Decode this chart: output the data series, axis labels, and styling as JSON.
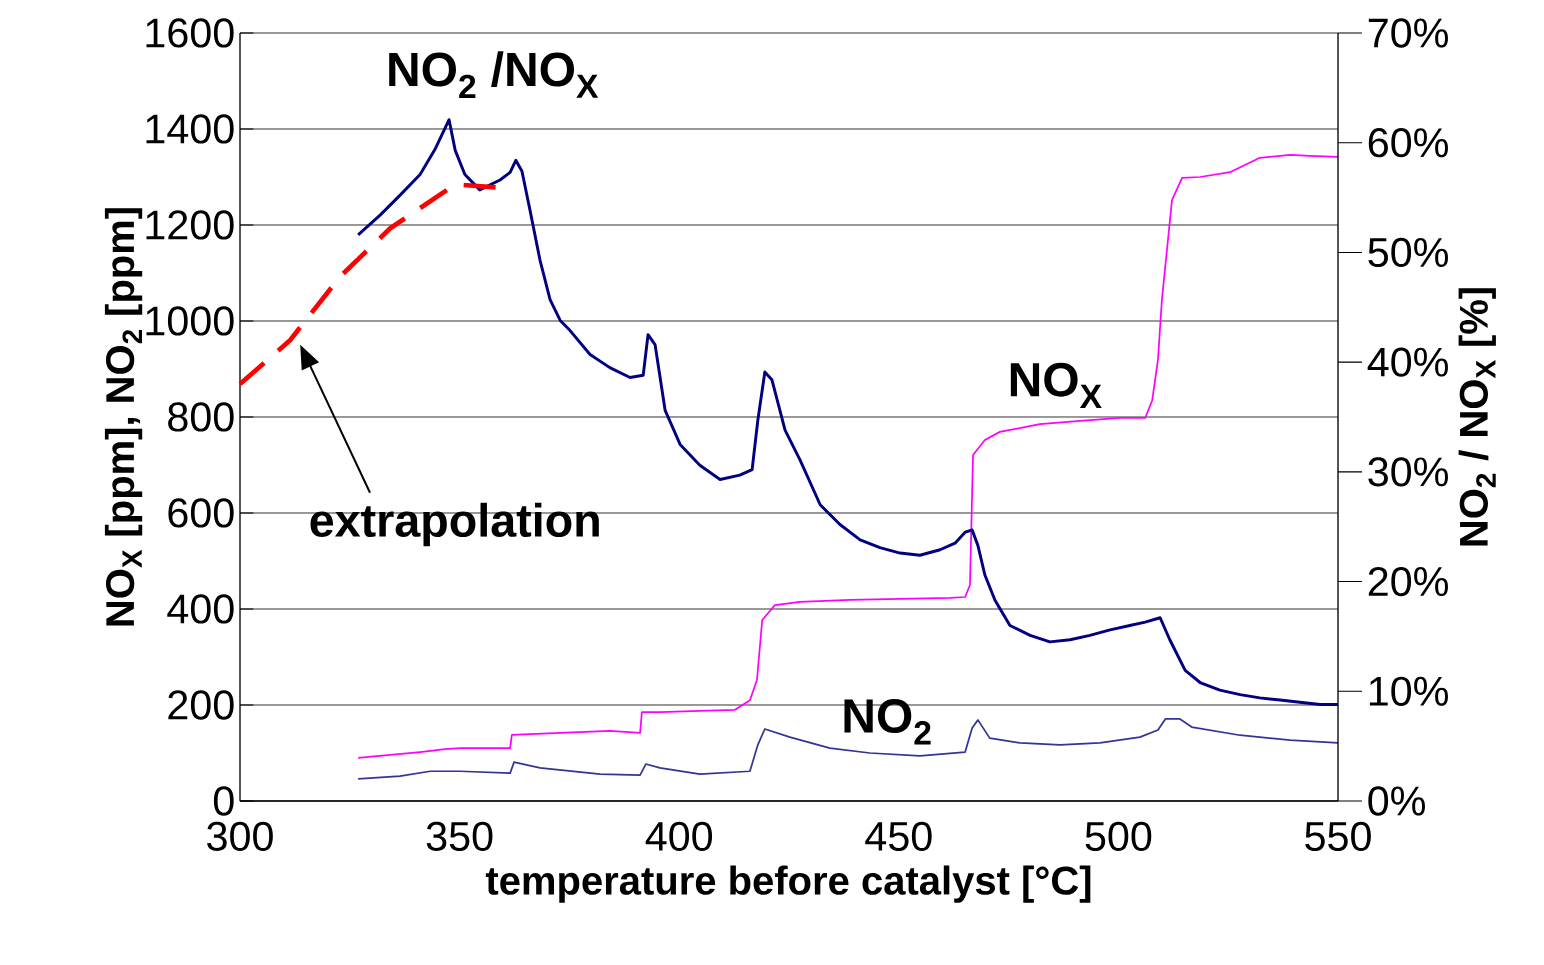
{
  "chart_data": {
    "type": "line",
    "xlabel": "temperature before catalyst [°C]",
    "ylabel": "NO$_{X}$ [ppm], NO$_{2}$ [ppm]",
    "y2label": "NO$_{2}$ / NO$_{X}$ [%]",
    "xlim": [
      300,
      550
    ],
    "xticks": [
      300,
      350,
      400,
      450,
      500,
      550
    ],
    "ylim": [
      0,
      1600
    ],
    "yticks": [
      0,
      200,
      400,
      600,
      800,
      1000,
      1200,
      1400,
      1600
    ],
    "y2lim": [
      0,
      70
    ],
    "y2ticks": [
      {
        "value": 0,
        "label": "0%"
      },
      {
        "value": 10,
        "label": "10%"
      },
      {
        "value": 20,
        "label": "20%"
      },
      {
        "value": 30,
        "label": "30%"
      },
      {
        "value": 40,
        "label": "40%"
      },
      {
        "value": 50,
        "label": "50%"
      },
      {
        "value": 60,
        "label": "60%"
      },
      {
        "value": 70,
        "label": "70%"
      }
    ],
    "grid": "y",
    "series": [
      {
        "name": "NO$_{2}$ /NO$_{X}$",
        "color": "#000080",
        "axis": "y2",
        "line_style": "solid",
        "x": [
          326.9,
          331.9,
          336.4,
          341.0,
          344.4,
          347.6,
          349.0,
          351.2,
          354.6,
          359.2,
          361.5,
          362.8,
          364.2,
          366.0,
          368.3,
          370.6,
          372.9,
          375.1,
          379.7,
          384.2,
          388.8,
          391.8,
          392.9,
          394.5,
          396.8,
          400.2,
          404.7,
          409.3,
          413.8,
          416.6,
          417.9,
          419.5,
          421.1,
          424.1,
          427.5,
          432.1,
          436.6,
          441.2,
          445.7,
          450.3,
          454.8,
          459.4,
          462.8,
          465.1,
          466.7,
          468.0,
          469.6,
          471.9,
          475.3,
          479.9,
          484.4,
          489.0,
          493.5,
          498.1,
          502.6,
          506.1,
          509.5,
          511.7,
          515.2,
          518.6,
          523.1,
          527.7,
          532.2,
          536.8,
          541.3,
          545.9,
          550.0
        ],
        "values": [
          51.6,
          53.4,
          55.2,
          57.1,
          59.4,
          62.1,
          59.3,
          57.1,
          55.7,
          56.6,
          57.3,
          58.4,
          57.4,
          53.9,
          49.3,
          45.7,
          43.8,
          42.9,
          40.7,
          39.5,
          38.6,
          38.8,
          42.5,
          41.6,
          35.6,
          32.5,
          30.6,
          29.3,
          29.7,
          30.2,
          34.7,
          39.1,
          38.4,
          33.8,
          31.1,
          27.0,
          25.2,
          23.8,
          23.1,
          22.6,
          22.4,
          22.9,
          23.5,
          24.5,
          24.7,
          23.3,
          20.6,
          18.3,
          16.0,
          15.1,
          14.5,
          14.7,
          15.1,
          15.6,
          16.0,
          16.3,
          16.7,
          14.7,
          11.9,
          10.8,
          10.1,
          9.7,
          9.4,
          9.2,
          9.0,
          8.8,
          8.8
        ]
      },
      {
        "name": "NO$_{X}$",
        "color": "#ff00ff",
        "line_style": "solid",
        "x": [
          326.9,
          334.2,
          341.0,
          346.7,
          350.1,
          361.5,
          361.9,
          372.9,
          384.2,
          391.1,
          391.5,
          395.6,
          404.7,
          412.7,
          416.1,
          417.7,
          418.9,
          421.8,
          427.5,
          438.9,
          450.3,
          461.7,
          465.1,
          466.2,
          466.9,
          469.6,
          473.0,
          482.1,
          491.3,
          500.4,
          506.1,
          507.7,
          509.0,
          509.9,
          512.2,
          514.5,
          518.6,
          525.4,
          532.2,
          539.1,
          543.6,
          550.0
        ],
        "values": [
          90,
          96,
          102,
          108,
          110,
          110,
          138,
          142,
          146,
          142,
          185,
          185,
          188,
          190,
          210,
          252,
          377,
          408,
          415,
          419,
          421,
          423,
          425,
          450,
          721,
          752,
          769,
          785,
          792,
          798,
          798,
          835,
          919,
          1044,
          1252,
          1298,
          1300,
          1310,
          1340,
          1346,
          1344,
          1342
        ]
      },
      {
        "name": "NO$_{2}$",
        "color": "#333399",
        "line_style": "solid",
        "x": [
          326.9,
          336.4,
          343.3,
          350.1,
          361.5,
          362.4,
          368.3,
          382.0,
          391.1,
          392.4,
          395.6,
          404.7,
          416.1,
          417.9,
          419.5,
          425.2,
          434.3,
          443.4,
          454.8,
          465.1,
          466.7,
          468.0,
          470.7,
          477.6,
          486.7,
          495.8,
          504.9,
          509.0,
          510.7,
          514.0,
          516.7,
          527.7,
          539.1,
          550.0
        ],
        "values": [
          46,
          52,
          62,
          62,
          58,
          81,
          69,
          56,
          54,
          77,
          69,
          56,
          62,
          117,
          150,
          133,
          110,
          100,
          94,
          102,
          152,
          169,
          131,
          121,
          117,
          121,
          133,
          148,
          171,
          171,
          154,
          137,
          127,
          121
        ]
      },
      {
        "name": "extrapolation",
        "color": "#ff0000",
        "axis": "y2",
        "line_style": "dashed",
        "x": [
          300.0,
          311.4,
          322.8,
          334.2,
          349.0,
          359.2
        ],
        "values": [
          38.0,
          42.0,
          47.8,
          52.2,
          56.2,
          55.9
        ]
      }
    ]
  }
}
